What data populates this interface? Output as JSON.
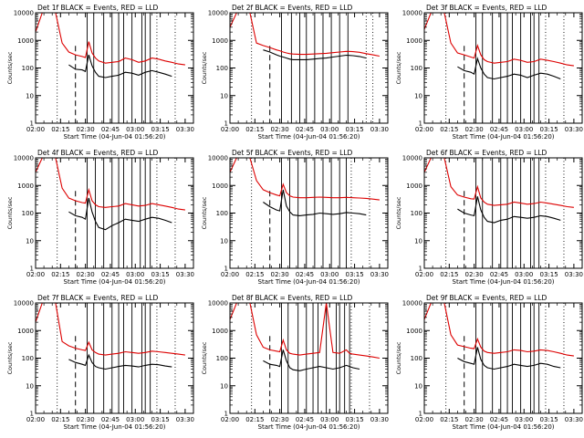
{
  "figure": {
    "x_ticks": [
      "02:00",
      "02:15",
      "02:30",
      "02:45",
      "03:00",
      "03:15",
      "03:30"
    ],
    "y_ticks": [
      "1",
      "10",
      "100",
      "1000",
      "10000"
    ],
    "x_axis_label": "Start Time (04-Jun-04 01:56:20)",
    "y_axis_label": "Counts/sec",
    "legend_glyph": "⸤",
    "colors": {
      "events": "#000000",
      "lld": "#dd0000",
      "axes": "#000000"
    }
  },
  "chart_data": [
    {
      "type": "line",
      "title": "Det 1f BLACK = Events, RED = LLD",
      "xlabel": "Start Time (04-Jun-04 01:56:20)",
      "ylabel": "Counts/sec",
      "xlim": [
        "02:00",
        "03:35"
      ],
      "ylim": [
        1,
        10000
      ],
      "yscale": "log",
      "x_unit": "minutes since 02:00",
      "x": [
        0,
        4,
        8,
        12,
        16,
        20,
        24,
        28,
        30,
        32,
        34,
        36,
        38,
        42,
        46,
        50,
        54,
        58,
        62,
        66,
        70,
        74,
        78,
        82,
        86,
        90
      ],
      "series": [
        {
          "name": "LLD",
          "color": "#dd0000",
          "values": [
            2000,
            10000,
            10000,
            10000,
            800,
            380,
            300,
            260,
            240,
            900,
            350,
            230,
            180,
            150,
            160,
            170,
            230,
            200,
            160,
            180,
            230,
            210,
            180,
            160,
            140,
            130
          ]
        },
        {
          "name": "Events",
          "color": "#000000",
          "x_start_index": 5,
          "values": [
            null,
            null,
            null,
            null,
            null,
            130,
            90,
            85,
            75,
            300,
            120,
            70,
            50,
            45,
            50,
            55,
            70,
            65,
            55,
            70,
            80,
            70,
            60,
            50,
            null,
            null
          ]
        }
      ],
      "solid_vlines": [
        "02:31",
        "02:35",
        "02:41",
        "02:46",
        "02:50",
        "02:53",
        "02:58",
        "03:04",
        "03:06",
        "03:09"
      ],
      "dashed_vlines": [
        "02:24"
      ],
      "dotted_vlines": [
        "02:13",
        "03:13",
        "03:24"
      ]
    },
    {
      "type": "line",
      "title": "Det 2f BLACK = Events, RED = LLD",
      "xlabel": "Start Time (04-Jun-04 01:56:20)",
      "ylabel": "Counts/sec",
      "ylim": [
        1,
        10000
      ],
      "yscale": "log",
      "x": [
        0,
        4,
        8,
        12,
        16,
        20,
        24,
        28,
        30,
        32,
        34,
        36,
        38,
        42,
        46,
        50,
        54,
        58,
        62,
        66,
        70,
        74,
        78,
        82,
        86,
        90
      ],
      "series": [
        {
          "name": "LLD",
          "color": "#dd0000",
          "values": [
            3000,
            10000,
            10000,
            10000,
            800,
            650,
            550,
            450,
            420,
            380,
            350,
            330,
            320,
            310,
            310,
            320,
            330,
            340,
            360,
            380,
            400,
            390,
            370,
            330,
            300,
            270
          ]
        },
        {
          "name": "Events",
          "color": "#000000",
          "values": [
            null,
            null,
            null,
            null,
            null,
            450,
            380,
            300,
            270,
            250,
            230,
            210,
            200,
            200,
            200,
            210,
            220,
            230,
            250,
            270,
            290,
            280,
            260,
            230,
            null,
            null
          ]
        }
      ],
      "solid_vlines": [
        "02:31",
        "02:37",
        "02:42",
        "02:46",
        "02:51",
        "02:56",
        "03:01",
        "03:06",
        "03:11"
      ],
      "dashed_vlines": [
        "02:24"
      ],
      "dotted_vlines": [
        "02:13",
        "03:22",
        "03:26"
      ]
    },
    {
      "type": "line",
      "title": "Det 3f BLACK = Events, RED = LLD",
      "xlabel": "Start Time (04-Jun-04 01:56:20)",
      "ylabel": "Counts/sec",
      "ylim": [
        1,
        10000
      ],
      "yscale": "log",
      "x": [
        0,
        4,
        8,
        12,
        16,
        20,
        24,
        28,
        30,
        32,
        34,
        36,
        38,
        42,
        46,
        50,
        54,
        58,
        62,
        66,
        70,
        74,
        78,
        82,
        86,
        90
      ],
      "series": [
        {
          "name": "LLD",
          "color": "#dd0000",
          "values": [
            2500,
            10000,
            10000,
            10000,
            800,
            350,
            300,
            250,
            230,
            650,
            300,
            200,
            170,
            150,
            160,
            170,
            210,
            190,
            160,
            170,
            210,
            190,
            170,
            150,
            130,
            120
          ]
        },
        {
          "name": "Events",
          "color": "#000000",
          "values": [
            null,
            null,
            null,
            null,
            null,
            110,
            80,
            70,
            60,
            220,
            100,
            60,
            45,
            40,
            45,
            50,
            60,
            55,
            45,
            55,
            65,
            60,
            50,
            40,
            null,
            null
          ]
        }
      ],
      "solid_vlines": [
        "02:31",
        "02:35",
        "02:41",
        "02:46",
        "02:50",
        "02:53",
        "02:58",
        "03:04",
        "03:06",
        "03:09"
      ],
      "dashed_vlines": [
        "02:24"
      ],
      "dotted_vlines": [
        "02:13",
        "03:13",
        "03:24"
      ]
    },
    {
      "type": "line",
      "title": "Det 4f BLACK = Events, RED = LLD",
      "xlabel": "Start Time (04-Jun-04 01:56:20)",
      "ylabel": "Counts/sec",
      "ylim": [
        1,
        10000
      ],
      "yscale": "log",
      "x": [
        0,
        4,
        8,
        12,
        16,
        20,
        24,
        28,
        30,
        32,
        34,
        36,
        38,
        42,
        46,
        50,
        54,
        58,
        62,
        66,
        70,
        74,
        78,
        82,
        86,
        90
      ],
      "series": [
        {
          "name": "LLD",
          "color": "#dd0000",
          "values": [
            3000,
            10000,
            10000,
            10000,
            800,
            350,
            280,
            240,
            230,
            700,
            280,
            200,
            170,
            160,
            170,
            180,
            220,
            200,
            180,
            190,
            220,
            200,
            180,
            160,
            140,
            130
          ]
        },
        {
          "name": "Events",
          "color": "#000000",
          "values": [
            null,
            null,
            null,
            null,
            null,
            110,
            80,
            70,
            60,
            350,
            110,
            50,
            30,
            25,
            35,
            45,
            60,
            55,
            50,
            60,
            70,
            65,
            55,
            45,
            null,
            null
          ]
        }
      ],
      "solid_vlines": [
        "02:31",
        "02:36",
        "02:41",
        "02:46",
        "02:50",
        "02:53",
        "02:58",
        "03:03",
        "03:06",
        "03:09"
      ],
      "dashed_vlines": [
        "02:24"
      ],
      "dotted_vlines": [
        "02:13",
        "03:13",
        "03:24"
      ]
    },
    {
      "type": "line",
      "title": "Det 5f BLACK = Events, RED = LLD",
      "xlabel": "Start Time (04-Jun-04 01:56:20)",
      "ylabel": "Counts/sec",
      "ylim": [
        1,
        10000
      ],
      "yscale": "log",
      "x": [
        0,
        4,
        8,
        12,
        16,
        20,
        24,
        28,
        30,
        32,
        34,
        36,
        38,
        42,
        46,
        50,
        54,
        58,
        62,
        66,
        70,
        74,
        78,
        82,
        86,
        90
      ],
      "series": [
        {
          "name": "LLD",
          "color": "#dd0000",
          "values": [
            3000,
            10000,
            10000,
            10000,
            1500,
            700,
            550,
            450,
            420,
            1100,
            550,
            420,
            380,
            360,
            360,
            370,
            380,
            370,
            360,
            360,
            370,
            360,
            350,
            340,
            320,
            300
          ]
        },
        {
          "name": "Events",
          "color": "#000000",
          "values": [
            null,
            null,
            null,
            null,
            null,
            250,
            170,
            130,
            120,
            700,
            180,
            110,
            85,
            80,
            85,
            90,
            100,
            95,
            90,
            95,
            105,
            100,
            95,
            85,
            null,
            null
          ]
        }
      ],
      "solid_vlines": [
        "02:31",
        "02:36",
        "02:41",
        "02:46",
        "02:51",
        "02:56",
        "03:01",
        "03:06",
        "03:10"
      ],
      "dashed_vlines": [
        "02:24"
      ],
      "dotted_vlines": [
        "02:13",
        "03:13",
        "03:24"
      ]
    },
    {
      "type": "line",
      "title": "Det 6f BLACK = Events, RED = LLD",
      "xlabel": "Start Time (04-Jun-04 01:56:20)",
      "ylabel": "Counts/sec",
      "ylim": [
        1,
        10000
      ],
      "yscale": "log",
      "x": [
        0,
        4,
        8,
        12,
        16,
        20,
        24,
        28,
        30,
        32,
        34,
        36,
        38,
        42,
        46,
        50,
        54,
        58,
        62,
        66,
        70,
        74,
        78,
        82,
        86,
        90
      ],
      "series": [
        {
          "name": "LLD",
          "color": "#dd0000",
          "values": [
            3000,
            10000,
            10000,
            10000,
            900,
            450,
            380,
            330,
            320,
            900,
            350,
            250,
            210,
            190,
            200,
            210,
            250,
            230,
            210,
            220,
            250,
            230,
            210,
            190,
            170,
            160
          ]
        },
        {
          "name": "Events",
          "color": "#000000",
          "values": [
            null,
            null,
            null,
            null,
            null,
            140,
            100,
            85,
            80,
            400,
            130,
            70,
            50,
            45,
            55,
            60,
            75,
            70,
            65,
            70,
            80,
            75,
            65,
            55,
            null,
            null
          ]
        }
      ],
      "solid_vlines": [
        "02:31",
        "02:35",
        "02:41",
        "02:46",
        "02:50",
        "02:53",
        "02:58",
        "03:04",
        "03:06",
        "03:09"
      ],
      "dashed_vlines": [
        "02:24"
      ],
      "dotted_vlines": [
        "02:13",
        "03:13",
        "03:24"
      ]
    },
    {
      "type": "line",
      "title": "Det 7f BLACK = Events, RED = LLD",
      "xlabel": "Start Time (04-Jun-04 01:56:20)",
      "ylabel": "Counts/sec",
      "ylim": [
        1,
        10000
      ],
      "yscale": "log",
      "x": [
        0,
        4,
        8,
        12,
        16,
        20,
        24,
        28,
        30,
        32,
        34,
        36,
        38,
        42,
        46,
        50,
        54,
        58,
        62,
        66,
        70,
        74,
        78,
        82,
        86,
        90
      ],
      "series": [
        {
          "name": "LLD",
          "color": "#dd0000",
          "values": [
            2000,
            10000,
            10000,
            10000,
            400,
            280,
            230,
            200,
            190,
            380,
            200,
            160,
            140,
            130,
            140,
            150,
            170,
            160,
            150,
            160,
            180,
            170,
            160,
            150,
            140,
            130
          ]
        },
        {
          "name": "Events",
          "color": "#000000",
          "values": [
            null,
            null,
            null,
            null,
            null,
            90,
            70,
            60,
            55,
            130,
            70,
            50,
            45,
            40,
            45,
            50,
            55,
            52,
            48,
            55,
            60,
            58,
            52,
            48,
            null,
            null
          ]
        }
      ],
      "solid_vlines": [
        "02:31",
        "02:35",
        "02:41",
        "02:46",
        "02:50",
        "02:53",
        "02:58",
        "03:04",
        "03:06",
        "03:09"
      ],
      "dashed_vlines": [
        "02:24"
      ],
      "dotted_vlines": [
        "02:13",
        "03:13",
        "03:24"
      ]
    },
    {
      "type": "line",
      "title": "Det 8f BLACK = Events, RED = LLD",
      "xlabel": "Start Time (04-Jun-04 01:56:20)",
      "ylabel": "Counts/sec",
      "ylim": [
        1,
        10000
      ],
      "yscale": "log",
      "x": [
        0,
        4,
        8,
        12,
        16,
        20,
        24,
        28,
        30,
        32,
        34,
        36,
        38,
        42,
        46,
        50,
        54,
        58,
        62,
        66,
        70,
        72,
        74,
        78,
        82,
        86,
        90
      ],
      "series": [
        {
          "name": "LLD",
          "color": "#dd0000",
          "values": [
            2500,
            10000,
            10000,
            10000,
            700,
            250,
            200,
            180,
            170,
            450,
            200,
            150,
            140,
            130,
            140,
            150,
            160,
            10000,
            160,
            150,
            200,
            150,
            140,
            130,
            120,
            110,
            100
          ]
        },
        {
          "name": "Events",
          "color": "#000000",
          "values": [
            null,
            null,
            null,
            null,
            null,
            80,
            60,
            55,
            50,
            200,
            80,
            45,
            38,
            35,
            40,
            45,
            50,
            45,
            40,
            45,
            55,
            50,
            45,
            40,
            null,
            null,
            null
          ]
        }
      ],
      "solid_vlines": [
        "02:31",
        "02:35",
        "02:41",
        "02:46",
        "02:50",
        "02:53",
        "02:58",
        "03:04",
        "03:06",
        "03:09",
        "03:12"
      ],
      "dashed_vlines": [
        "02:24"
      ],
      "dotted_vlines": [
        "02:13",
        "03:13",
        "03:24"
      ]
    },
    {
      "type": "line",
      "title": "Det 9f BLACK = Events, RED = LLD",
      "xlabel": "Start Time (04-Jun-04 01:56:20)",
      "ylabel": "Counts/sec",
      "ylim": [
        1,
        10000
      ],
      "yscale": "log",
      "x": [
        0,
        4,
        8,
        12,
        16,
        20,
        24,
        28,
        30,
        32,
        34,
        36,
        38,
        42,
        46,
        50,
        54,
        58,
        62,
        66,
        70,
        74,
        78,
        82,
        86,
        90
      ],
      "series": [
        {
          "name": "LLD",
          "color": "#dd0000",
          "values": [
            2500,
            10000,
            10000,
            10000,
            700,
            300,
            260,
            230,
            220,
            500,
            250,
            180,
            160,
            150,
            160,
            170,
            200,
            190,
            170,
            180,
            200,
            190,
            170,
            150,
            130,
            120
          ]
        },
        {
          "name": "Events",
          "color": "#000000",
          "values": [
            null,
            null,
            null,
            null,
            null,
            100,
            75,
            65,
            60,
            250,
            90,
            55,
            45,
            40,
            45,
            50,
            60,
            55,
            50,
            55,
            65,
            60,
            50,
            45,
            null,
            null
          ]
        }
      ],
      "solid_vlines": [
        "02:31",
        "02:35",
        "02:41",
        "02:46",
        "02:50",
        "02:53",
        "02:58",
        "03:04",
        "03:06",
        "03:09"
      ],
      "dashed_vlines": [
        "02:24"
      ],
      "dotted_vlines": [
        "02:13",
        "03:13",
        "03:24"
      ]
    }
  ]
}
